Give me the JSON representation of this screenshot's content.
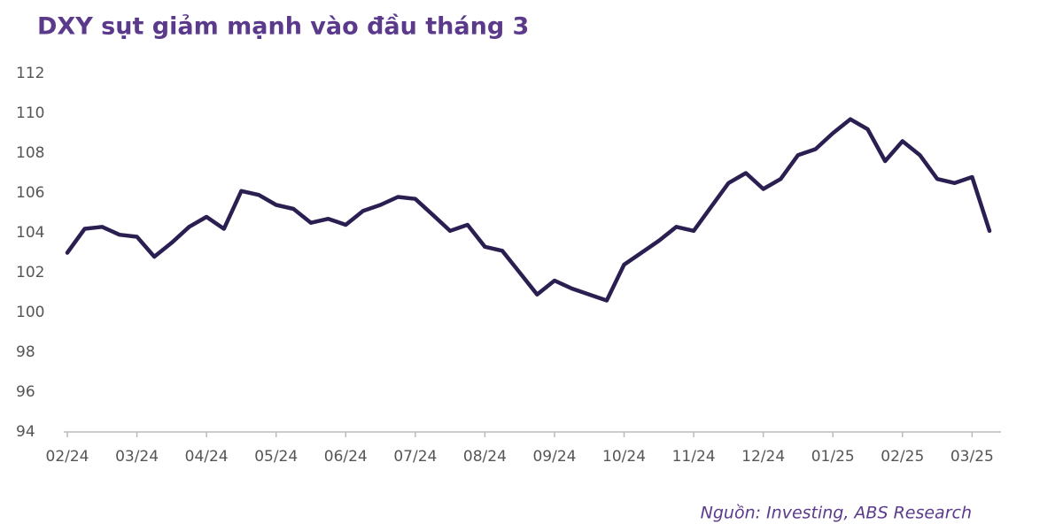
{
  "chart_data": {
    "type": "line",
    "title": "DXY sụt giảm mạnh vào đầu tháng 3",
    "source": "Nguồn: Investing, ABS Research",
    "categories": [
      "02/24",
      null,
      null,
      null,
      "03/24",
      null,
      null,
      null,
      "04/24",
      null,
      null,
      null,
      "05/24",
      null,
      null,
      null,
      "06/24",
      null,
      null,
      null,
      "07/24",
      null,
      null,
      null,
      "08/24",
      null,
      null,
      null,
      "09/24",
      null,
      null,
      null,
      "10/24",
      null,
      null,
      null,
      "11/24",
      null,
      null,
      null,
      "12/24",
      null,
      null,
      null,
      "01/25",
      null,
      null,
      null,
      "02/25",
      null,
      null,
      null,
      "03/25",
      null
    ],
    "series": [
      {
        "name": "DXY",
        "color": "#2b1f52",
        "values": [
          103.0,
          104.2,
          104.3,
          103.9,
          103.8,
          102.8,
          103.5,
          104.3,
          104.8,
          104.2,
          106.1,
          105.9,
          105.4,
          105.2,
          104.5,
          104.7,
          104.4,
          105.1,
          105.4,
          105.8,
          105.7,
          104.9,
          104.1,
          104.4,
          103.3,
          103.1,
          102.0,
          100.9,
          101.6,
          101.2,
          100.9,
          100.6,
          102.4,
          103.0,
          103.6,
          104.3,
          104.1,
          105.3,
          106.5,
          107.0,
          106.2,
          106.7,
          107.9,
          108.2,
          109.0,
          109.7,
          109.2,
          107.6,
          108.6,
          107.9,
          106.7,
          106.5,
          106.8,
          104.1
        ]
      }
    ],
    "ylim": [
      94,
      112
    ],
    "yticks": [
      94,
      96,
      98,
      100,
      102,
      104,
      106,
      108,
      110,
      112
    ]
  }
}
